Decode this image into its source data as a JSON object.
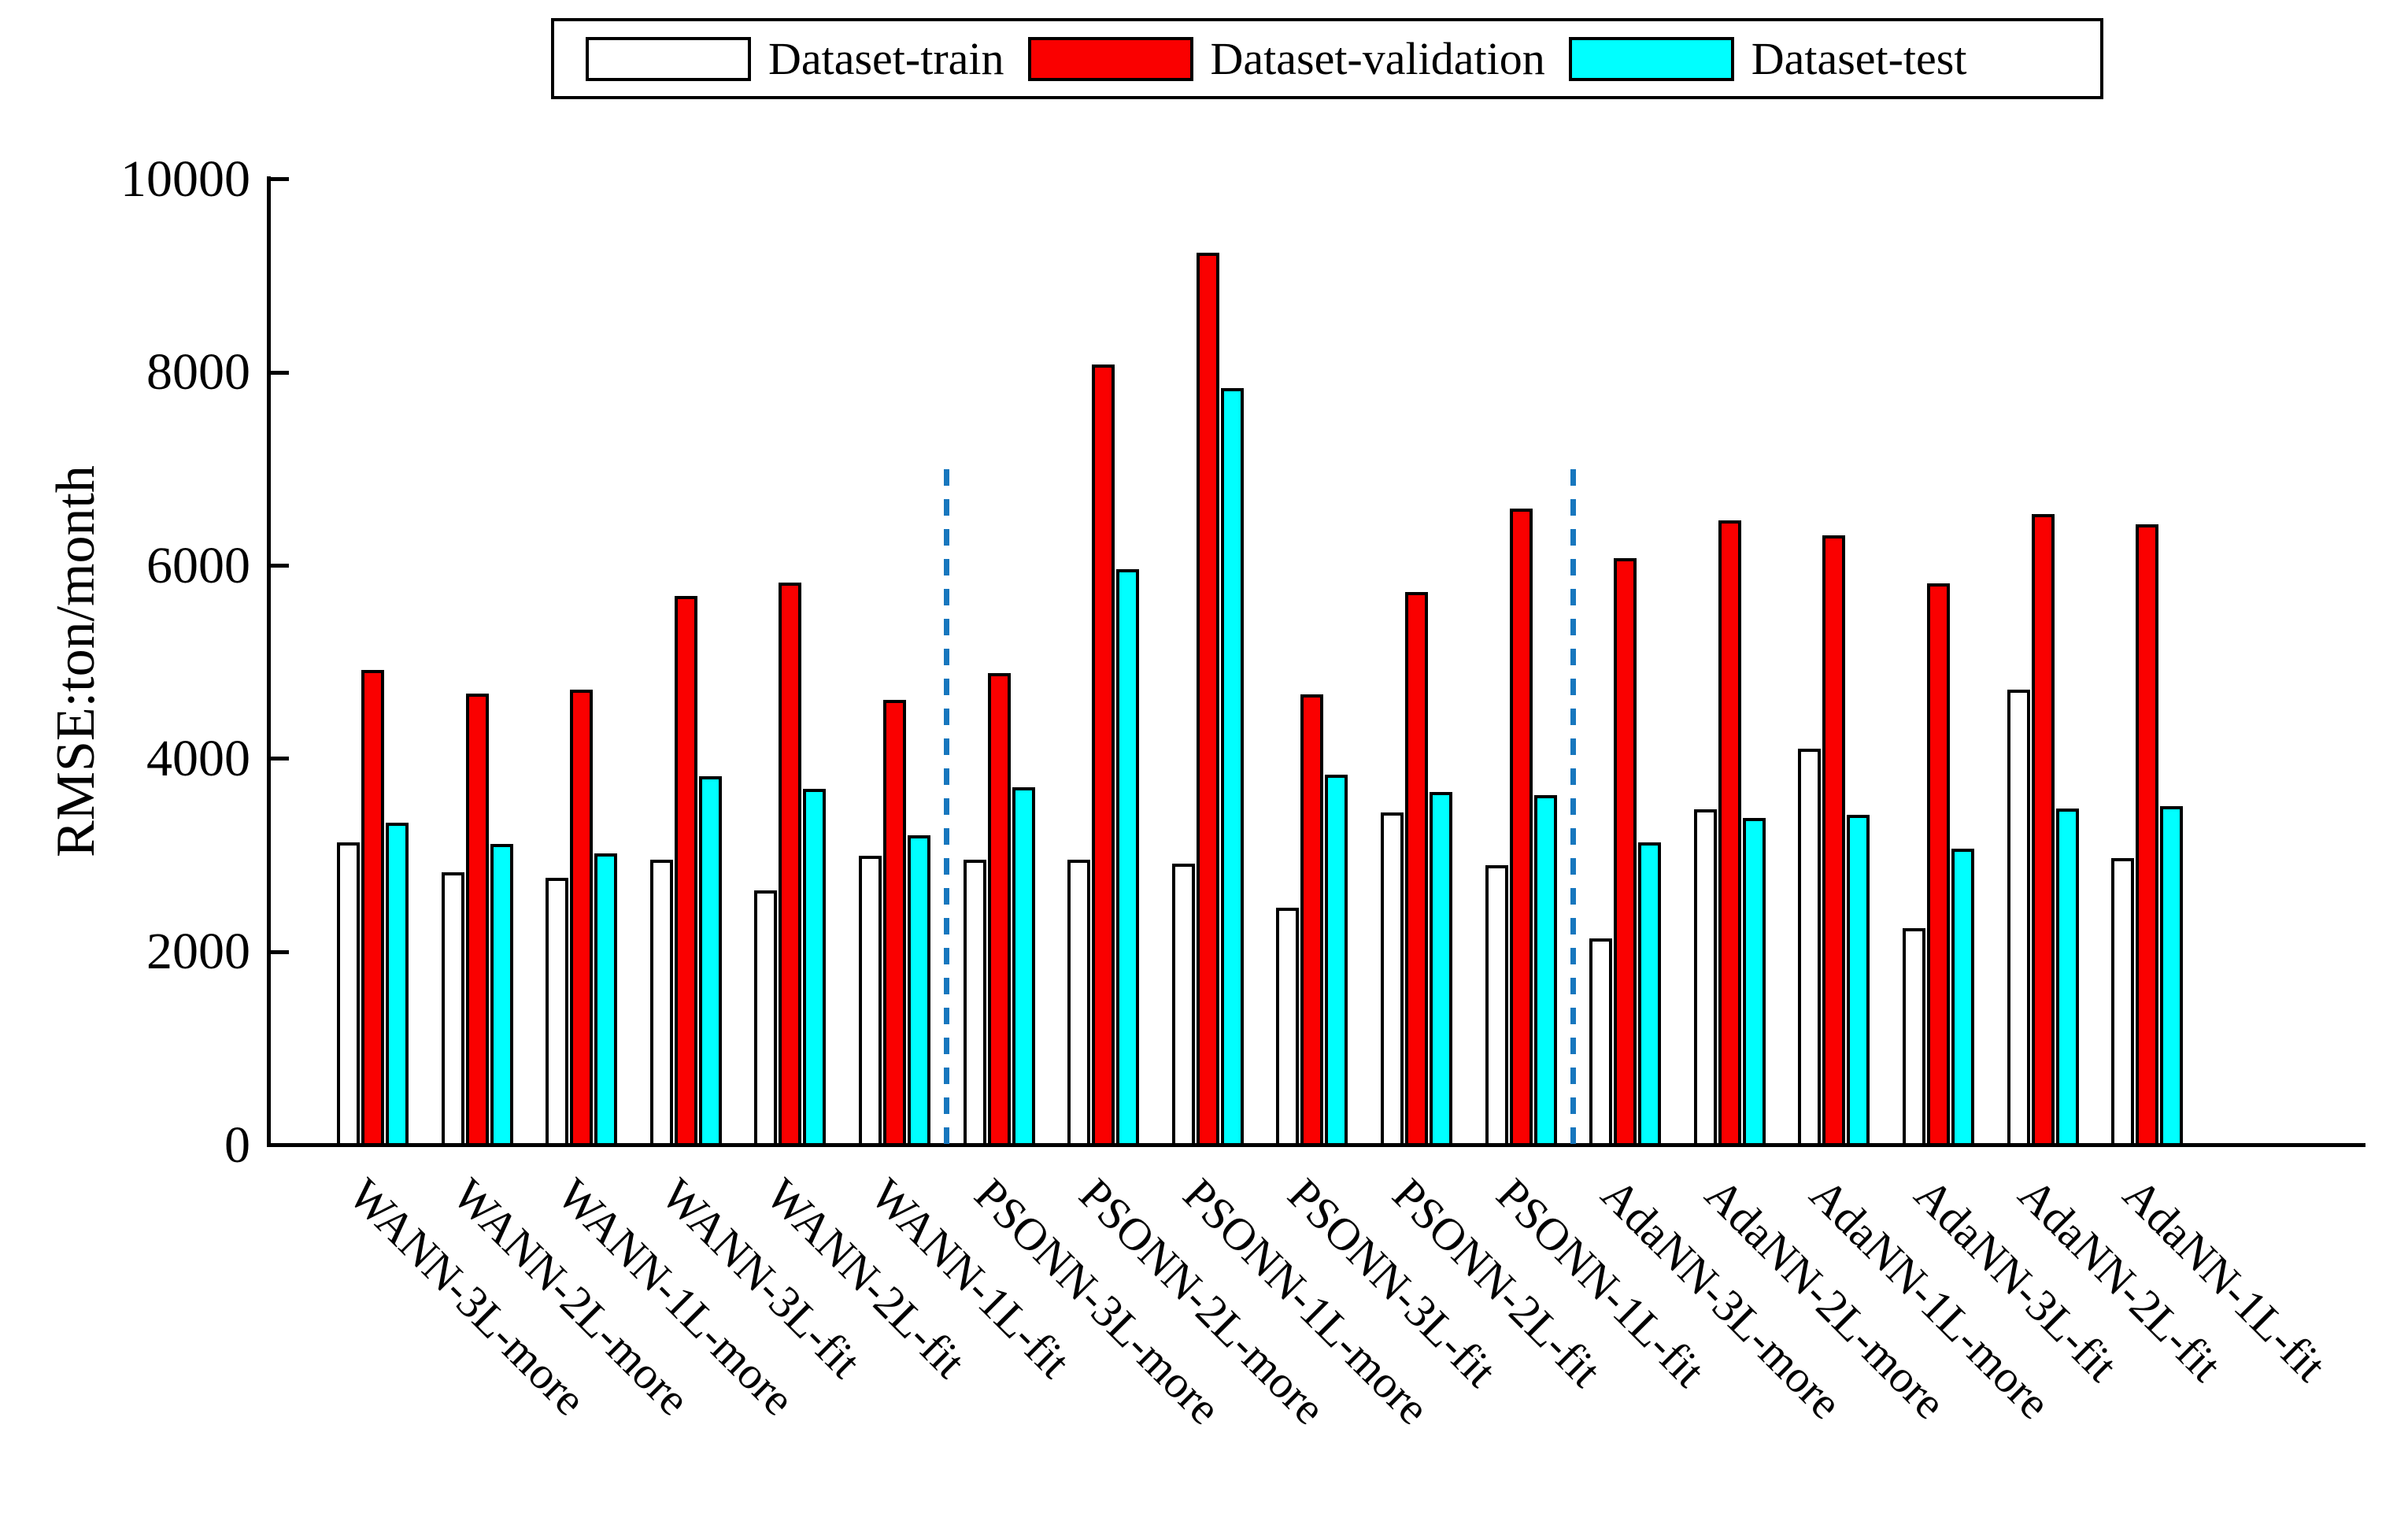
{
  "figure": {
    "background": "#ffffff",
    "axis_color": "#000000"
  },
  "legend": {
    "position": "top-center",
    "items": [
      {
        "label": "Dataset-train",
        "color": "#ffffff"
      },
      {
        "label": "Dataset-validation",
        "color": "#fa0000"
      },
      {
        "label": "Dataset-test",
        "color": "#00ffff"
      }
    ]
  },
  "chart_data": {
    "type": "bar",
    "title": "",
    "xlabel": "",
    "ylabel": "RMSE:ton/month",
    "ylim": [
      0,
      10000
    ],
    "yticks": [
      0,
      2000,
      4000,
      6000,
      8000,
      10000
    ],
    "grid": false,
    "legend_position": "top-center",
    "xtick_rotation": 45,
    "categories": [
      "WANN-3L-more",
      "WANN-2L-more",
      "WANN-1L-more",
      "WANN-3L-fit",
      "WANN-2L-fit",
      "WANN-1L-fit",
      "PSONN-3L-more",
      "PSONN-2L-more",
      "PSONN-1L-more",
      "PSONN-3L-fit",
      "PSONN-2L-fit",
      "PSONN-1L-fit",
      "AdaNN-3L-more",
      "AdaNN-2L-more",
      "AdaNN-1L-more",
      "AdaNN-3L-fit",
      "AdaNN-2L-fit",
      "AdaNN-1L-fit"
    ],
    "series": [
      {
        "name": "Dataset-train",
        "color": "#ffffff",
        "values": [
          3150,
          2840,
          2780,
          2970,
          2650,
          3010,
          2970,
          2970,
          2930,
          2470,
          3460,
          2910,
          2150,
          3490,
          4120,
          2260,
          4730,
          2980
        ]
      },
      {
        "name": "Dataset-validation",
        "color": "#fa0000",
        "values": [
          4930,
          4690,
          4730,
          5700,
          5840,
          4620,
          4900,
          8100,
          9250,
          4680,
          5740,
          6600,
          6090,
          6480,
          6330,
          5830,
          6550,
          6440
        ]
      },
      {
        "name": "Dataset-test",
        "color": "#00ffff",
        "values": [
          3350,
          3130,
          3030,
          3830,
          3700,
          3220,
          3720,
          5980,
          7850,
          3850,
          3670,
          3640,
          3150,
          3400,
          3430,
          3080,
          3500,
          3520
        ]
      }
    ],
    "separators": {
      "after_categories": [
        6,
        12
      ],
      "top_value": 7000,
      "color": "#1777be",
      "style": "dashed"
    }
  }
}
